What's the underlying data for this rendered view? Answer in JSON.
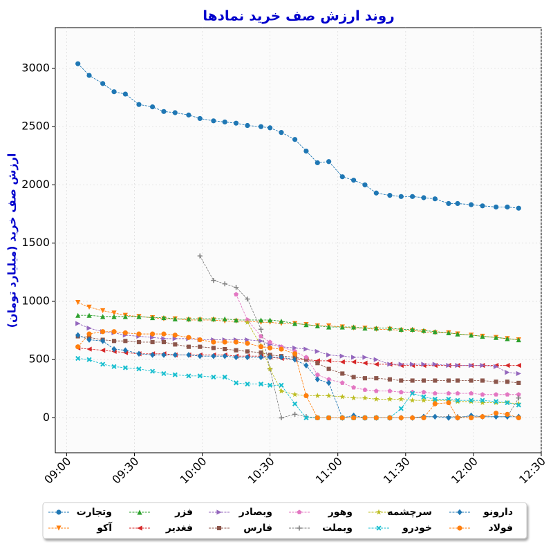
{
  "chart_data": {
    "type": "line",
    "title": "روند ارزش صف خرید نمادها",
    "y_label": "ارزش صف خرید (میلیارد تومان)",
    "x": [
      "09:05",
      "09:10",
      "09:16",
      "09:21",
      "09:26",
      "09:32",
      "09:38",
      "09:43",
      "09:48",
      "09:54",
      "09:59",
      "10:05",
      "10:10",
      "10:15",
      "10:20",
      "10:26",
      "10:30",
      "10:35",
      "10:41",
      "10:46",
      "10:51",
      "10:56",
      "11:02",
      "11:07",
      "11:12",
      "11:17",
      "11:23",
      "11:28",
      "11:33",
      "11:38",
      "11:43",
      "11:49",
      "11:53",
      "11:59",
      "12:04",
      "12:10",
      "12:15",
      "12:20"
    ],
    "xlim": [
      "08:55",
      "12:30"
    ],
    "xticks": [
      "09:00",
      "09:30",
      "10:00",
      "10:30",
      "11:00",
      "11:30",
      "12:00",
      "12:30"
    ],
    "ylim": [
      -300,
      3350
    ],
    "yticks": [
      0,
      500,
      1000,
      1500,
      2000,
      2500,
      3000
    ],
    "grid": true,
    "legend": "lower center",
    "series": [
      {
        "name": "وتجارت",
        "color": "#1f77b4",
        "marker": "o",
        "values": [
          3040,
          2940,
          2870,
          2800,
          2780,
          2690,
          2670,
          2630,
          2620,
          2600,
          2570,
          2550,
          2540,
          2530,
          2510,
          2500,
          2490,
          2450,
          2390,
          2290,
          2190,
          2200,
          2070,
          2040,
          2000,
          1930,
          1910,
          1900,
          1900,
          1890,
          1880,
          1840,
          1840,
          1830,
          1820,
          1810,
          1810,
          1800
        ]
      },
      {
        "name": "آکو",
        "color": "#ff7f0e",
        "marker": "v",
        "values": [
          990,
          950,
          920,
          900,
          880,
          870,
          860,
          850,
          850,
          840,
          840,
          840,
          830,
          830,
          830,
          820,
          820,
          810,
          810,
          800,
          790,
          790,
          780,
          770,
          770,
          760,
          760,
          750,
          750,
          740,
          730,
          730,
          720,
          710,
          700,
          690,
          680,
          670
        ]
      },
      {
        "name": "فزر",
        "color": "#2ca02c",
        "marker": "^",
        "values": [
          880,
          880,
          870,
          870,
          870,
          870,
          860,
          860,
          850,
          850,
          850,
          850,
          850,
          840,
          840,
          840,
          840,
          830,
          810,
          800,
          790,
          780,
          780,
          780,
          770,
          770,
          770,
          760,
          760,
          750,
          740,
          730,
          720,
          710,
          700,
          690,
          680,
          670
        ]
      },
      {
        "name": "فغدیر",
        "color": "#d62728",
        "marker": "<",
        "values": [
          600,
          590,
          580,
          570,
          560,
          550,
          550,
          550,
          540,
          540,
          540,
          540,
          540,
          530,
          530,
          530,
          520,
          510,
          500,
          500,
          490,
          490,
          480,
          480,
          470,
          460,
          460,
          450,
          450,
          450,
          450,
          450,
          450,
          450,
          450,
          450,
          450,
          450
        ]
      },
      {
        "name": "وبصادر",
        "color": "#9467bd",
        "marker": ">",
        "values": [
          810,
          770,
          740,
          730,
          710,
          700,
          690,
          680,
          680,
          680,
          670,
          670,
          670,
          670,
          670,
          660,
          630,
          610,
          600,
          590,
          570,
          540,
          530,
          520,
          520,
          500,
          460,
          460,
          460,
          460,
          460,
          450,
          450,
          450,
          450,
          440,
          390,
          380
        ]
      },
      {
        "name": "فارس",
        "color": "#8c564b",
        "marker": "s",
        "values": [
          700,
          690,
          670,
          660,
          660,
          650,
          650,
          650,
          630,
          610,
          610,
          600,
          590,
          580,
          570,
          560,
          540,
          530,
          520,
          500,
          470,
          420,
          380,
          350,
          340,
          340,
          330,
          320,
          320,
          320,
          320,
          320,
          320,
          320,
          320,
          310,
          310,
          300
        ]
      },
      {
        "name": "وهور",
        "color": "#e377c2",
        "marker": "p",
        "values": [
          null,
          null,
          null,
          null,
          null,
          null,
          null,
          null,
          null,
          null,
          null,
          null,
          null,
          1060,
          840,
          700,
          650,
          610,
          570,
          520,
          370,
          330,
          300,
          260,
          240,
          230,
          230,
          220,
          220,
          220,
          210,
          210,
          210,
          210,
          200,
          200,
          200,
          200
        ]
      },
      {
        "name": "وبملت",
        "color": "#7f7f7f",
        "marker": "+",
        "values": [
          null,
          null,
          null,
          null,
          null,
          null,
          null,
          null,
          null,
          null,
          1390,
          1180,
          1150,
          1120,
          1020,
          760,
          420,
          0,
          30,
          10,
          0,
          0,
          0,
          0,
          0,
          0,
          0,
          0,
          0,
          10,
          10,
          10,
          10,
          10,
          10,
          10,
          10,
          170
        ]
      },
      {
        "name": "سرچشمه",
        "color": "#bcbd22",
        "marker": "*",
        "values": [
          null,
          null,
          null,
          null,
          null,
          null,
          null,
          null,
          null,
          null,
          null,
          null,
          null,
          null,
          820,
          620,
          420,
          230,
          200,
          190,
          190,
          190,
          180,
          170,
          170,
          160,
          160,
          160,
          150,
          150,
          150,
          150,
          140,
          140,
          130,
          130,
          130,
          120
        ]
      },
      {
        "name": "خودرو",
        "color": "#17becf",
        "marker": "X",
        "values": [
          510,
          500,
          460,
          440,
          430,
          420,
          400,
          380,
          370,
          360,
          360,
          350,
          350,
          300,
          290,
          290,
          280,
          280,
          120,
          0,
          0,
          0,
          0,
          0,
          0,
          0,
          0,
          80,
          210,
          180,
          160,
          160,
          150,
          150,
          150,
          140,
          130,
          110
        ]
      },
      {
        "name": "دارونو",
        "color": "#1f77b4",
        "marker": "D",
        "values": [
          710,
          670,
          660,
          590,
          580,
          550,
          540,
          540,
          540,
          540,
          530,
          530,
          530,
          520,
          520,
          520,
          520,
          520,
          500,
          450,
          330,
          300,
          0,
          20,
          0,
          0,
          0,
          0,
          0,
          10,
          10,
          0,
          0,
          20,
          10,
          10,
          10,
          10
        ]
      },
      {
        "name": "فولاد",
        "color": "#ff7f0e",
        "marker": "o",
        "values": [
          610,
          720,
          740,
          740,
          730,
          720,
          720,
          720,
          710,
          690,
          670,
          650,
          650,
          650,
          640,
          610,
          600,
          590,
          550,
          190,
          0,
          0,
          0,
          0,
          0,
          0,
          0,
          0,
          0,
          0,
          120,
          130,
          0,
          0,
          10,
          40,
          30,
          0
        ]
      }
    ]
  }
}
